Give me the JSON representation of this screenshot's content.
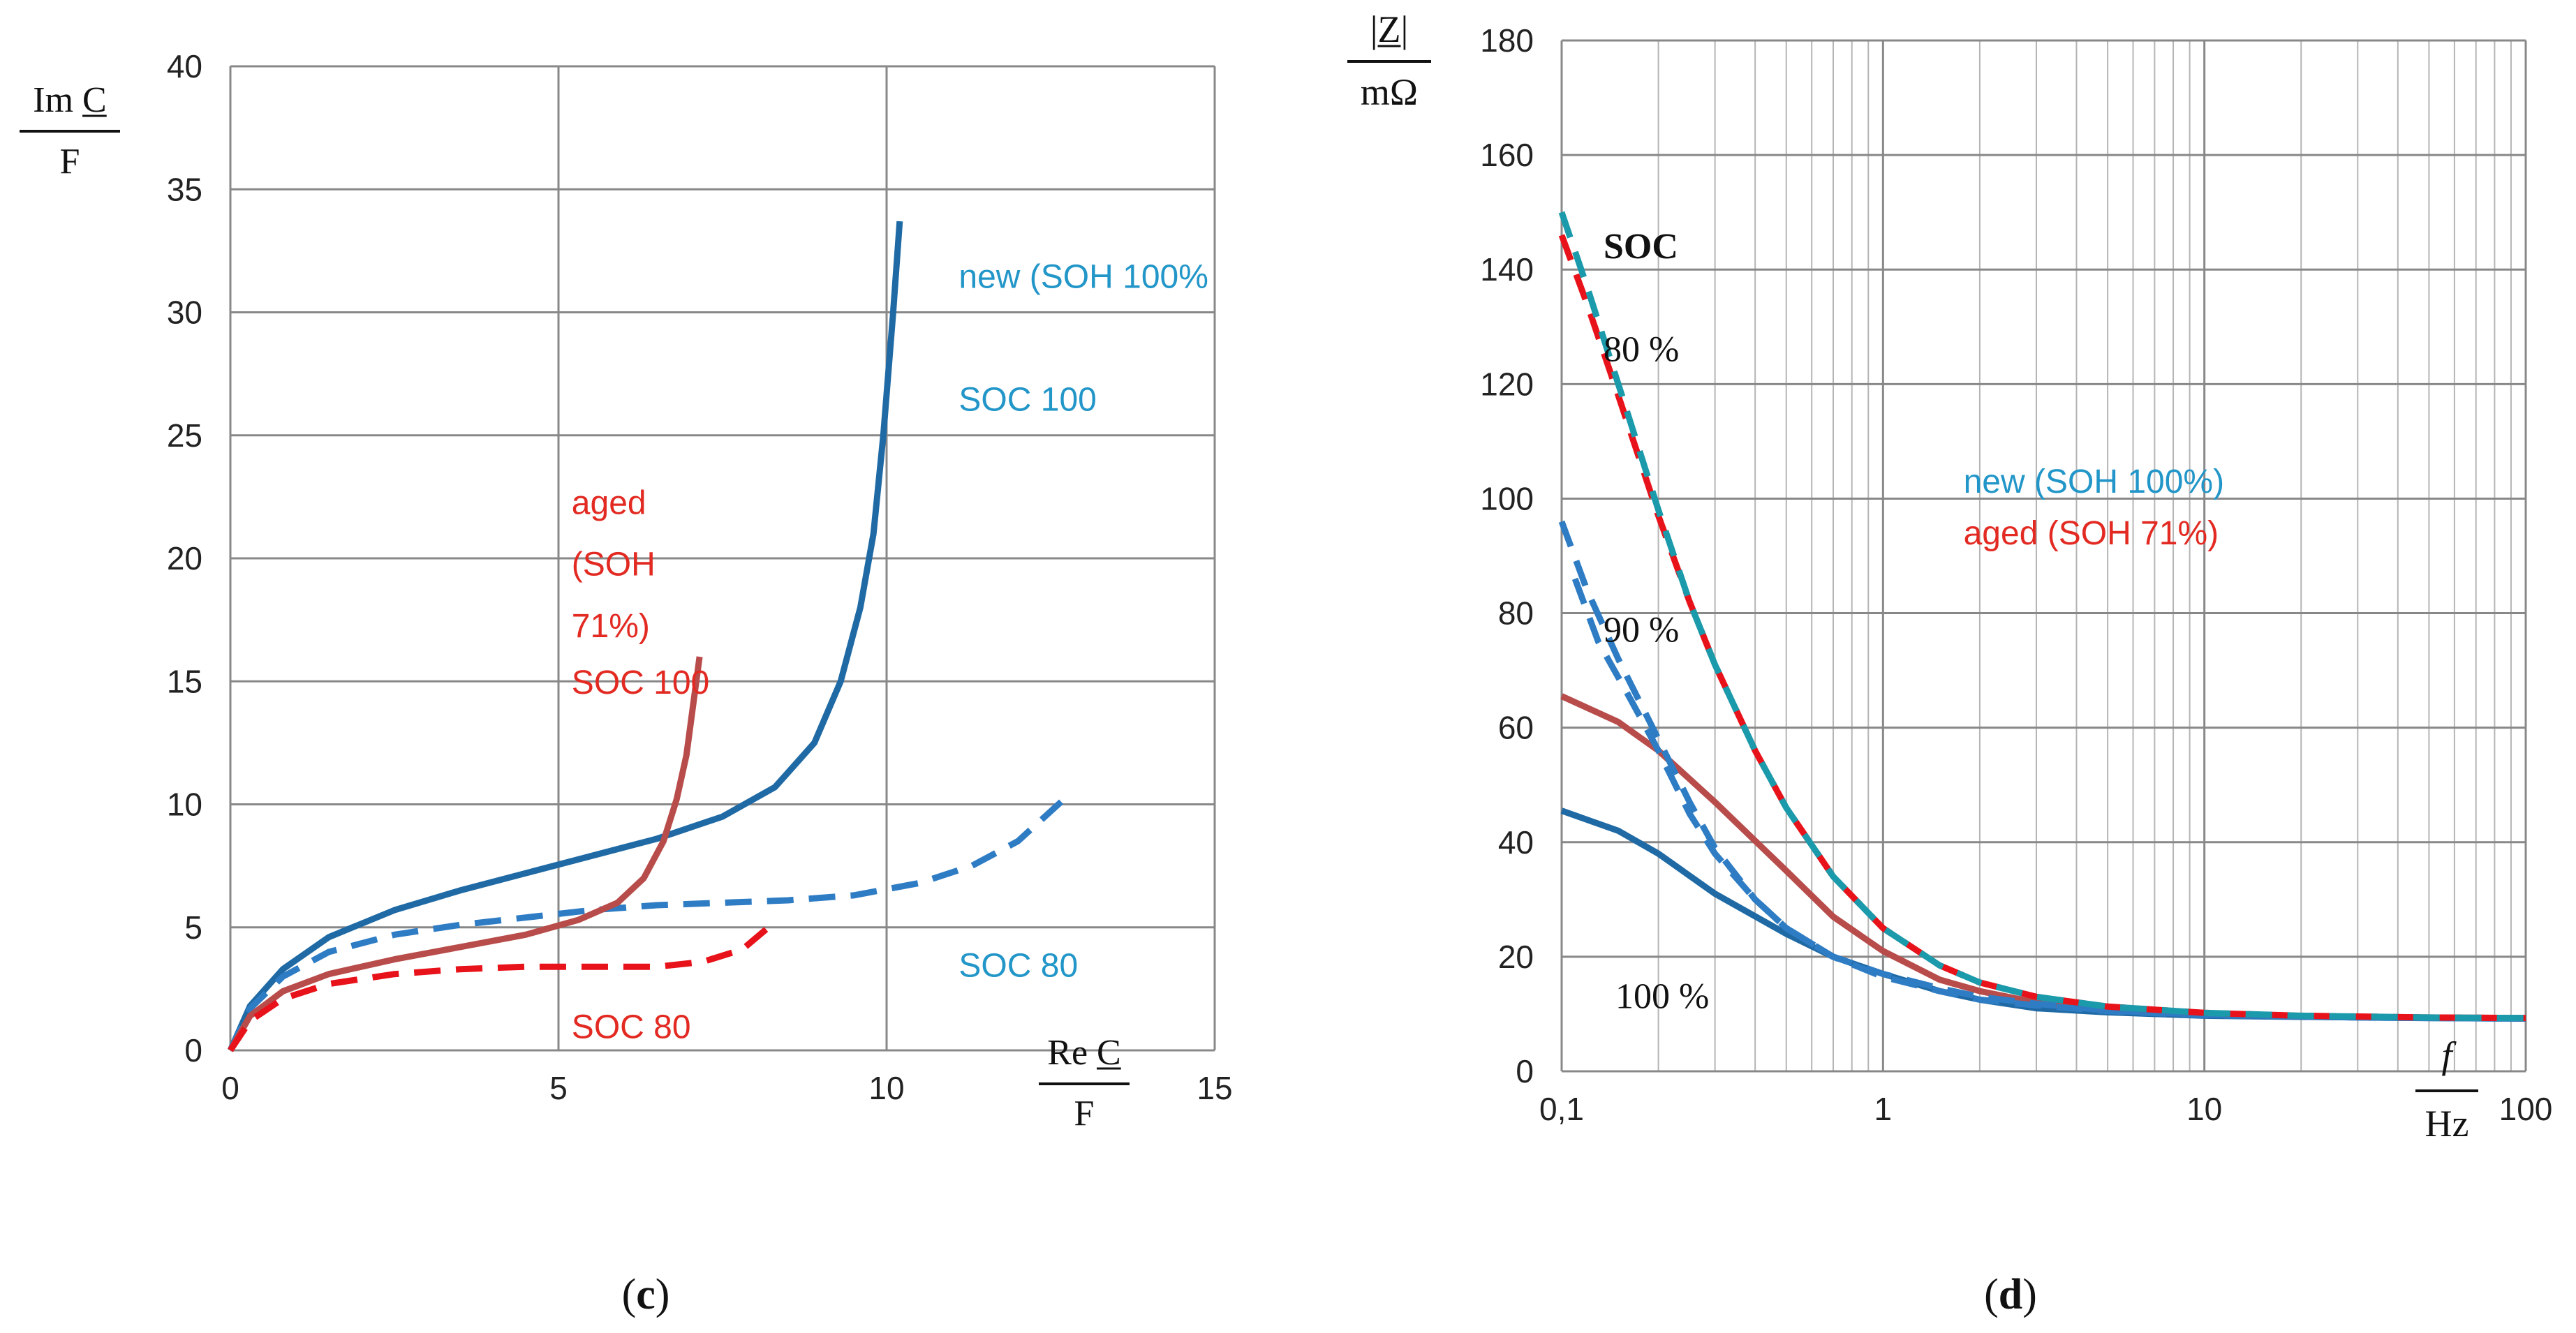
{
  "colors": {
    "new_solid": "#1f6aa5",
    "new_dash": "#2e7cc4",
    "aged_solid": "#b84c4a",
    "aged_dash": "#e8121a",
    "new_dash_80": "#1a9aaa",
    "label_blue": "#2296c8",
    "label_red": "#e22a22"
  },
  "panels": {
    "c": {
      "caption_open": "(",
      "caption_letter": "c",
      "caption_close": ")"
    },
    "d": {
      "caption_open": "(",
      "caption_letter": "d",
      "caption_close": ")"
    }
  },
  "chart_data": [
    {
      "id": "c",
      "type": "line",
      "xlabel": {
        "top": "Re C",
        "bottom": "F"
      },
      "ylabel": {
        "top": "Im C",
        "bottom": "F"
      },
      "xlim": [
        0,
        15
      ],
      "ylim": [
        0,
        40
      ],
      "xticks": [
        0,
        5,
        10,
        15
      ],
      "yticks": [
        0,
        5,
        10,
        15,
        20,
        25,
        30,
        35,
        40
      ],
      "xtick_labels": [
        "0",
        "5",
        "10",
        "15"
      ],
      "ytick_labels": [
        "0",
        "5",
        "10",
        "15",
        "20",
        "25",
        "30",
        "35",
        "40"
      ],
      "grid": true,
      "annotations": [
        {
          "text": "new (SOH 100%",
          "x": 11.1,
          "y": 31.0,
          "color": "label_blue"
        },
        {
          "text": "SOC 100",
          "x": 11.1,
          "y": 26.0,
          "color": "label_blue"
        },
        {
          "text": "aged",
          "x": 5.2,
          "y": 21.8,
          "color": "label_red"
        },
        {
          "text": "(SOH",
          "x": 5.2,
          "y": 19.3,
          "color": "label_red"
        },
        {
          "text": "71%)",
          "x": 5.2,
          "y": 16.8,
          "color": "label_red"
        },
        {
          "text": "SOC 100",
          "x": 5.2,
          "y": 14.5,
          "color": "label_red"
        },
        {
          "text": "SOC 80",
          "x": 11.1,
          "y": 3.0,
          "color": "label_blue"
        },
        {
          "text": "SOC 80",
          "x": 5.2,
          "y": 0.5,
          "color": "label_red"
        }
      ],
      "series": [
        {
          "name": "new (SOH 100%) SOC 100",
          "style": "solid",
          "color": "new_solid",
          "x": [
            0,
            0.3,
            0.8,
            1.5,
            2.5,
            3.5,
            4.5,
            5.5,
            6.5,
            7.5,
            8.3,
            8.9,
            9.3,
            9.6,
            9.8,
            9.95,
            10.1,
            10.2
          ],
          "y": [
            0,
            1.8,
            3.3,
            4.6,
            5.7,
            6.5,
            7.2,
            7.9,
            8.6,
            9.5,
            10.7,
            12.5,
            15,
            18,
            21,
            25,
            30,
            33.7
          ]
        },
        {
          "name": "new (SOH 100%) SOC 80",
          "style": "dashed",
          "color": "new_dash",
          "x": [
            0,
            0.3,
            0.8,
            1.5,
            2.5,
            3.5,
            4.5,
            5.5,
            6.5,
            7.5,
            8.5,
            9.5,
            10.5,
            11.3,
            12.0,
            12.7
          ],
          "y": [
            0,
            1.7,
            3.0,
            4.0,
            4.7,
            5.1,
            5.4,
            5.7,
            5.9,
            6.0,
            6.1,
            6.3,
            6.8,
            7.5,
            8.5,
            10.2
          ]
        },
        {
          "name": "aged (SOH 71%) SOC 100",
          "style": "solid",
          "color": "aged_solid",
          "x": [
            0,
            0.3,
            0.8,
            1.5,
            2.5,
            3.5,
            4.5,
            5.3,
            5.9,
            6.3,
            6.6,
            6.8,
            6.95,
            7.05,
            7.15
          ],
          "y": [
            0,
            1.4,
            2.4,
            3.1,
            3.7,
            4.2,
            4.7,
            5.3,
            6.0,
            7.0,
            8.5,
            10.2,
            12.0,
            14.0,
            16.0
          ]
        },
        {
          "name": "aged (SOH 71%) SOC 80",
          "style": "dashed",
          "color": "aged_dash",
          "x": [
            0,
            0.3,
            0.8,
            1.5,
            2.5,
            3.5,
            4.5,
            5.5,
            6.5,
            7.2,
            7.8,
            8.2
          ],
          "y": [
            0,
            1.2,
            2.1,
            2.7,
            3.1,
            3.3,
            3.4,
            3.4,
            3.4,
            3.6,
            4.1,
            5.0
          ]
        }
      ]
    },
    {
      "id": "d",
      "type": "line",
      "xscale": "log",
      "xlabel": {
        "top": "f",
        "bottom": "Hz"
      },
      "ylabel": {
        "top": "|Z|",
        "bottom": "mΩ"
      },
      "xlim": [
        0.1,
        100
      ],
      "ylim": [
        0,
        180
      ],
      "xticks": [
        0.1,
        1,
        10,
        100
      ],
      "yticks": [
        0,
        20,
        40,
        60,
        80,
        100,
        120,
        140,
        160,
        180
      ],
      "xtick_labels": [
        "0,1",
        "1",
        "10",
        "100"
      ],
      "ytick_labels": [
        "0",
        "20",
        "40",
        "60",
        "80",
        "100",
        "120",
        "140",
        "160",
        "180"
      ],
      "grid": true,
      "annotations": [
        {
          "text": "SOC",
          "x": 0.135,
          "y": 142,
          "color": "black",
          "bold": true
        },
        {
          "text": "80 %",
          "x": 0.135,
          "y": 124,
          "color": "black"
        },
        {
          "text": "90 %",
          "x": 0.135,
          "y": 75,
          "color": "black"
        },
        {
          "text": "100 %",
          "x": 0.147,
          "y": 11,
          "color": "black"
        },
        {
          "text": "new (SOH 100%)",
          "x": 1.78,
          "y": 101,
          "color": "label_blue"
        },
        {
          "text": "aged (SOH 71%)",
          "x": 1.78,
          "y": 92,
          "color": "label_red"
        }
      ],
      "series": [
        {
          "name": "new SOC 100",
          "style": "solid",
          "color": "new_solid",
          "x": [
            0.1,
            0.15,
            0.2,
            0.3,
            0.5,
            0.7,
            1,
            1.5,
            2,
            3,
            5,
            10,
            20,
            50,
            100
          ],
          "y": [
            45.5,
            42,
            38,
            31,
            24,
            20,
            17,
            14,
            12.5,
            11,
            10.3,
            9.7,
            9.5,
            9.3,
            9.2
          ]
        },
        {
          "name": "aged SOC 100",
          "style": "solid",
          "color": "aged_solid",
          "x": [
            0.1,
            0.15,
            0.2,
            0.3,
            0.5,
            0.7,
            1,
            1.5,
            2,
            3,
            5,
            10,
            20,
            50,
            100
          ],
          "y": [
            65.5,
            61,
            56,
            47,
            35,
            27,
            21,
            16,
            14,
            12,
            10.8,
            10,
            9.6,
            9.4,
            9.3
          ]
        },
        {
          "name": "new SOC 90",
          "style": "dashed",
          "color": "new_dash",
          "x": [
            0.1,
            0.12,
            0.15,
            0.2,
            0.25,
            0.3,
            0.4,
            0.5,
            0.7,
            1,
            1.5,
            2,
            3,
            5,
            10,
            30,
            100
          ],
          "y": [
            96,
            84,
            72,
            58,
            47,
            39,
            30,
            25,
            20,
            16.5,
            14,
            12.5,
            11.5,
            10.5,
            9.8,
            9.4,
            9.2
          ]
        },
        {
          "name": "aged SOC 90",
          "style": "dashed",
          "color": "new_dash",
          "x": [
            0.11,
            0.13,
            0.16,
            0.2,
            0.25,
            0.3,
            0.4,
            0.5,
            0.7,
            1,
            1.5,
            2,
            3,
            5,
            10,
            30,
            100
          ],
          "y": [
            86,
            75,
            66,
            56,
            45,
            38,
            30,
            25,
            20,
            17,
            14.5,
            13,
            11.8,
            10.6,
            9.9,
            9.4,
            9.2
          ]
        },
        {
          "name": "aged SOC 80",
          "style": "dashed",
          "color": "aged_dash",
          "x": [
            0.1,
            0.12,
            0.15,
            0.2,
            0.25,
            0.3,
            0.4,
            0.5,
            0.7,
            1,
            1.5,
            2,
            3,
            5,
            10,
            20,
            50,
            100
          ],
          "y": [
            146,
            134,
            118,
            97,
            82,
            71,
            56,
            46,
            34,
            25,
            18.5,
            15.5,
            13,
            11.3,
            10.2,
            9.7,
            9.4,
            9.3
          ]
        },
        {
          "name": "new SOC 80",
          "style": "dashed",
          "color": "new_dash_80",
          "x": [
            0.1,
            0.12,
            0.15,
            0.2,
            0.25,
            0.3,
            0.4,
            0.5,
            0.7,
            1,
            1.5,
            2,
            3,
            5,
            10,
            20,
            50,
            100
          ],
          "y": [
            150,
            137,
            120,
            98,
            82,
            71,
            56,
            46,
            34,
            25,
            18.5,
            15.5,
            13,
            11.3,
            10.2,
            9.7,
            9.4,
            9.3
          ]
        }
      ]
    }
  ]
}
